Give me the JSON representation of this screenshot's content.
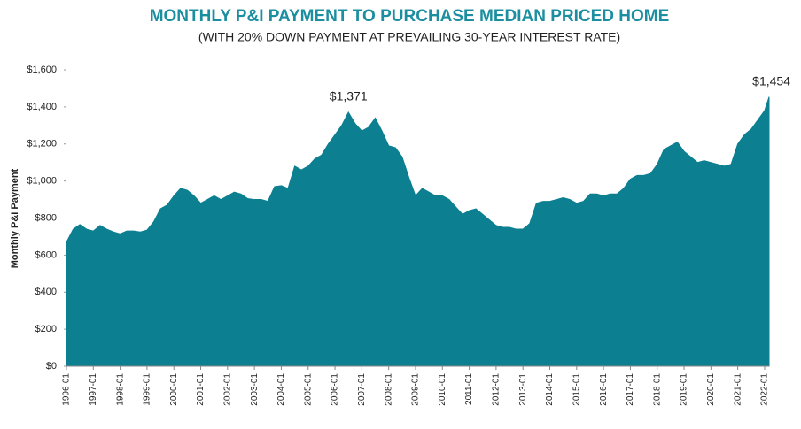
{
  "chart_data": {
    "type": "area",
    "title": "MONTHLY P&I PAYMENT TO PURCHASE MEDIAN PRICED HOME",
    "subtitle": "(WITH 20% DOWN PAYMENT AT PREVAILING 30-YEAR INTEREST RATE)",
    "y_label": "Monthly P&I Payment",
    "color": "#0c7f90",
    "x": [
      "1996-01",
      "1996-04",
      "1996-07",
      "1996-10",
      "1997-01",
      "1997-04",
      "1997-07",
      "1997-10",
      "1998-01",
      "1998-04",
      "1998-07",
      "1998-10",
      "1999-01",
      "1999-04",
      "1999-07",
      "1999-10",
      "2000-01",
      "2000-04",
      "2000-07",
      "2000-10",
      "2001-01",
      "2001-04",
      "2001-07",
      "2001-10",
      "2002-01",
      "2002-04",
      "2002-07",
      "2002-10",
      "2003-01",
      "2003-04",
      "2003-07",
      "2003-10",
      "2004-01",
      "2004-04",
      "2004-07",
      "2004-10",
      "2005-01",
      "2005-04",
      "2005-07",
      "2005-10",
      "2006-01",
      "2006-04",
      "2006-07",
      "2006-10",
      "2007-01",
      "2007-04",
      "2007-07",
      "2007-10",
      "2008-01",
      "2008-04",
      "2008-07",
      "2008-10",
      "2009-01",
      "2009-04",
      "2009-07",
      "2009-10",
      "2010-01",
      "2010-04",
      "2010-07",
      "2010-10",
      "2011-01",
      "2011-04",
      "2011-07",
      "2011-10",
      "2012-01",
      "2012-04",
      "2012-07",
      "2012-10",
      "2013-01",
      "2013-04",
      "2013-07",
      "2013-10",
      "2014-01",
      "2014-04",
      "2014-07",
      "2014-10",
      "2015-01",
      "2015-04",
      "2015-07",
      "2015-10",
      "2016-01",
      "2016-04",
      "2016-07",
      "2016-10",
      "2017-01",
      "2017-04",
      "2017-07",
      "2017-10",
      "2018-01",
      "2018-04",
      "2018-07",
      "2018-10",
      "2019-01",
      "2019-04",
      "2019-07",
      "2019-10",
      "2020-01",
      "2020-04",
      "2020-07",
      "2020-10",
      "2021-01",
      "2021-04",
      "2021-07",
      "2021-10",
      "2022-01",
      "2022-03"
    ],
    "values": [
      670,
      740,
      765,
      740,
      730,
      760,
      740,
      725,
      715,
      730,
      730,
      725,
      735,
      780,
      850,
      870,
      920,
      960,
      950,
      920,
      880,
      900,
      920,
      900,
      920,
      940,
      930,
      905,
      900,
      900,
      890,
      970,
      975,
      960,
      1080,
      1060,
      1080,
      1120,
      1140,
      1200,
      1250,
      1300,
      1371,
      1310,
      1270,
      1290,
      1340,
      1270,
      1190,
      1180,
      1130,
      1020,
      920,
      960,
      940,
      920,
      920,
      900,
      860,
      820,
      840,
      850,
      820,
      790,
      760,
      750,
      750,
      740,
      740,
      770,
      880,
      890,
      890,
      900,
      910,
      900,
      880,
      890,
      930,
      930,
      920,
      930,
      930,
      960,
      1010,
      1030,
      1030,
      1040,
      1090,
      1170,
      1190,
      1210,
      1160,
      1130,
      1100,
      1110,
      1100,
      1090,
      1080,
      1090,
      1200,
      1250,
      1280,
      1330,
      1380,
      1454
    ],
    "xticks": [
      "1996-01",
      "1997-01",
      "1998-01",
      "1999-01",
      "2000-01",
      "2001-01",
      "2002-01",
      "2003-01",
      "2004-01",
      "2005-01",
      "2006-01",
      "2007-01",
      "2008-01",
      "2009-01",
      "2010-01",
      "2011-01",
      "2012-01",
      "2013-01",
      "2014-01",
      "2015-01",
      "2016-01",
      "2017-01",
      "2018-01",
      "2019-01",
      "2020-01",
      "2021-01",
      "2022-01"
    ],
    "ylim": [
      0,
      1600
    ],
    "yticks": [
      {
        "value": 0,
        "label": "$0"
      },
      {
        "value": 200,
        "label": "$200"
      },
      {
        "value": 400,
        "label": "$400"
      },
      {
        "value": 600,
        "label": "$600"
      },
      {
        "value": 800,
        "label": "$800"
      },
      {
        "value": 1000,
        "label": "$1,000"
      },
      {
        "value": 1200,
        "label": "$1,200"
      },
      {
        "value": 1400,
        "label": "$1,400"
      },
      {
        "value": 1600,
        "label": "$1,600"
      }
    ],
    "annotations": [
      {
        "label": "$1,371",
        "x": "2006-07",
        "value": 1371
      },
      {
        "label": "$1,454",
        "x": "2022-03",
        "value": 1454
      }
    ]
  }
}
